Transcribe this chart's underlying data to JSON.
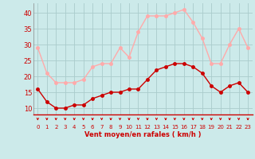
{
  "hours": [
    0,
    1,
    2,
    3,
    4,
    5,
    6,
    7,
    8,
    9,
    10,
    11,
    12,
    13,
    14,
    15,
    16,
    17,
    18,
    19,
    20,
    21,
    22,
    23
  ],
  "wind_avg": [
    16,
    12,
    10,
    10,
    11,
    11,
    13,
    14,
    15,
    15,
    16,
    16,
    19,
    22,
    23,
    24,
    24,
    23,
    21,
    17,
    15,
    17,
    18,
    15
  ],
  "wind_gust": [
    29,
    21,
    18,
    18,
    18,
    19,
    23,
    24,
    24,
    29,
    26,
    34,
    39,
    39,
    39,
    40,
    41,
    37,
    32,
    24,
    24,
    30,
    35,
    29
  ],
  "color_avg": "#cc0000",
  "color_gust": "#ffaaaa",
  "bg_color": "#cceaea",
  "grid_color": "#aacccc",
  "xlabel": "Vent moyen/en rafales ( km/h )",
  "xlabel_color": "#cc0000",
  "tick_color": "#cc0000",
  "ylim_min": 8,
  "ylim_max": 43,
  "yticks": [
    10,
    15,
    20,
    25,
    30,
    35,
    40
  ],
  "line_width": 1.0,
  "marker_size": 2.5
}
